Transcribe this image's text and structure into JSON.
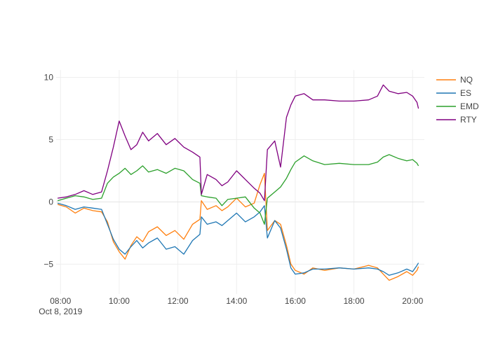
{
  "chart_data": {
    "type": "line",
    "xlabel": "",
    "ylabel": "",
    "x_axis": {
      "range": [
        7.85,
        20.4
      ],
      "tick_values": [
        8,
        10,
        12,
        14,
        16,
        18,
        20
      ],
      "tick_labels": [
        "08:00",
        "10:00",
        "12:00",
        "14:00",
        "16:00",
        "18:00",
        "20:00"
      ],
      "first_tick_date": "Oct 8, 2019"
    },
    "y_axis": {
      "range": [
        -7.4,
        10.6
      ],
      "tick_values": [
        10,
        5,
        0,
        -5
      ],
      "tick_labels": [
        "10",
        "5",
        "0",
        "−5"
      ]
    },
    "grid": true,
    "legend_position": "top-right",
    "series": [
      {
        "name": "NQ",
        "color": "#ff7f0e",
        "x": [
          7.9,
          8.2,
          8.5,
          8.8,
          9.1,
          9.4,
          9.6,
          9.8,
          10.0,
          10.2,
          10.4,
          10.6,
          10.8,
          11.0,
          11.3,
          11.6,
          11.9,
          12.2,
          12.5,
          12.75,
          12.8,
          13.0,
          13.3,
          13.5,
          13.7,
          14.0,
          14.3,
          14.6,
          14.8,
          14.95,
          15.05,
          15.3,
          15.5,
          15.7,
          15.85,
          16.0,
          16.3,
          16.6,
          17.0,
          17.5,
          18.0,
          18.5,
          18.8,
          19.0,
          19.2,
          19.5,
          19.8,
          20.0,
          20.15,
          20.2
        ],
        "y": [
          -0.2,
          -0.4,
          -0.9,
          -0.5,
          -0.7,
          -0.8,
          -1.6,
          -3.2,
          -4.0,
          -4.6,
          -3.5,
          -2.8,
          -3.2,
          -2.4,
          -2.0,
          -2.7,
          -2.3,
          -3.0,
          -1.8,
          -1.4,
          0.1,
          -0.6,
          -0.3,
          -0.7,
          -0.4,
          0.3,
          -0.4,
          -0.1,
          1.4,
          2.3,
          -2.3,
          -1.5,
          -1.8,
          -3.5,
          -5.0,
          -5.5,
          -5.8,
          -5.3,
          -5.5,
          -5.3,
          -5.4,
          -5.1,
          -5.3,
          -5.8,
          -6.3,
          -6.0,
          -5.6,
          -5.9,
          -5.5,
          -5.2
        ]
      },
      {
        "name": "ES",
        "color": "#1f77b4",
        "x": [
          7.9,
          8.2,
          8.5,
          8.8,
          9.1,
          9.4,
          9.6,
          9.8,
          10.0,
          10.2,
          10.4,
          10.6,
          10.8,
          11.0,
          11.3,
          11.6,
          11.9,
          12.2,
          12.5,
          12.75,
          12.8,
          13.0,
          13.3,
          13.5,
          13.7,
          14.0,
          14.3,
          14.6,
          14.8,
          14.95,
          15.05,
          15.3,
          15.5,
          15.7,
          15.85,
          16.0,
          16.3,
          16.6,
          17.0,
          17.5,
          18.0,
          18.5,
          18.8,
          19.0,
          19.2,
          19.5,
          19.8,
          20.0,
          20.15,
          20.2
        ],
        "y": [
          -0.1,
          -0.3,
          -0.6,
          -0.4,
          -0.5,
          -0.6,
          -1.8,
          -3.0,
          -3.8,
          -4.2,
          -3.6,
          -3.1,
          -3.7,
          -3.3,
          -2.9,
          -3.8,
          -3.6,
          -4.2,
          -3.1,
          -2.6,
          -1.2,
          -1.8,
          -1.6,
          -1.9,
          -1.5,
          -0.9,
          -1.6,
          -1.2,
          -0.8,
          -0.3,
          -2.9,
          -1.5,
          -2.1,
          -3.8,
          -5.3,
          -5.8,
          -5.7,
          -5.4,
          -5.4,
          -5.3,
          -5.4,
          -5.3,
          -5.4,
          -5.6,
          -5.9,
          -5.7,
          -5.4,
          -5.6,
          -5.1,
          -4.9
        ]
      },
      {
        "name": "EMD",
        "color": "#2ca02c",
        "x": [
          7.9,
          8.2,
          8.5,
          8.8,
          9.1,
          9.4,
          9.6,
          9.8,
          10.0,
          10.2,
          10.4,
          10.6,
          10.8,
          11.0,
          11.3,
          11.6,
          11.9,
          12.2,
          12.5,
          12.75,
          12.8,
          13.0,
          13.3,
          13.5,
          13.7,
          14.0,
          14.3,
          14.6,
          14.8,
          14.95,
          15.05,
          15.3,
          15.5,
          15.7,
          15.85,
          16.0,
          16.3,
          16.6,
          17.0,
          17.5,
          18.0,
          18.5,
          18.8,
          19.0,
          19.2,
          19.5,
          19.8,
          20.0,
          20.15,
          20.2
        ],
        "y": [
          0.1,
          0.3,
          0.5,
          0.4,
          0.2,
          0.3,
          1.5,
          2.0,
          2.3,
          2.7,
          2.2,
          2.5,
          2.9,
          2.4,
          2.6,
          2.3,
          2.7,
          2.5,
          1.8,
          1.5,
          0.5,
          0.4,
          0.3,
          -0.3,
          0.2,
          0.3,
          0.4,
          -0.5,
          -0.9,
          -1.8,
          0.3,
          0.8,
          1.2,
          1.9,
          2.6,
          3.2,
          3.7,
          3.3,
          3.0,
          3.1,
          3.0,
          3.0,
          3.2,
          3.6,
          3.8,
          3.5,
          3.3,
          3.4,
          3.1,
          2.9
        ]
      },
      {
        "name": "RTY",
        "color": "#800080",
        "x": [
          7.9,
          8.2,
          8.5,
          8.8,
          9.1,
          9.4,
          9.6,
          9.8,
          10.0,
          10.2,
          10.4,
          10.6,
          10.8,
          11.0,
          11.3,
          11.6,
          11.9,
          12.2,
          12.5,
          12.75,
          12.8,
          13.0,
          13.3,
          13.5,
          13.7,
          14.0,
          14.3,
          14.6,
          14.8,
          14.95,
          15.05,
          15.3,
          15.5,
          15.7,
          15.85,
          16.0,
          16.3,
          16.6,
          17.0,
          17.5,
          18.0,
          18.5,
          18.8,
          19.0,
          19.2,
          19.5,
          19.8,
          20.0,
          20.15,
          20.2
        ],
        "y": [
          0.3,
          0.4,
          0.6,
          0.9,
          0.6,
          0.8,
          2.5,
          4.4,
          6.5,
          5.3,
          4.2,
          4.6,
          5.6,
          4.9,
          5.5,
          4.6,
          5.1,
          4.4,
          4.0,
          3.6,
          0.6,
          2.2,
          1.8,
          1.3,
          1.6,
          2.5,
          1.8,
          1.1,
          0.7,
          0.1,
          4.2,
          4.9,
          2.8,
          6.8,
          7.8,
          8.5,
          8.7,
          8.2,
          8.2,
          8.1,
          8.1,
          8.2,
          8.5,
          9.4,
          8.9,
          8.7,
          8.8,
          8.5,
          8.0,
          7.5
        ]
      }
    ]
  }
}
